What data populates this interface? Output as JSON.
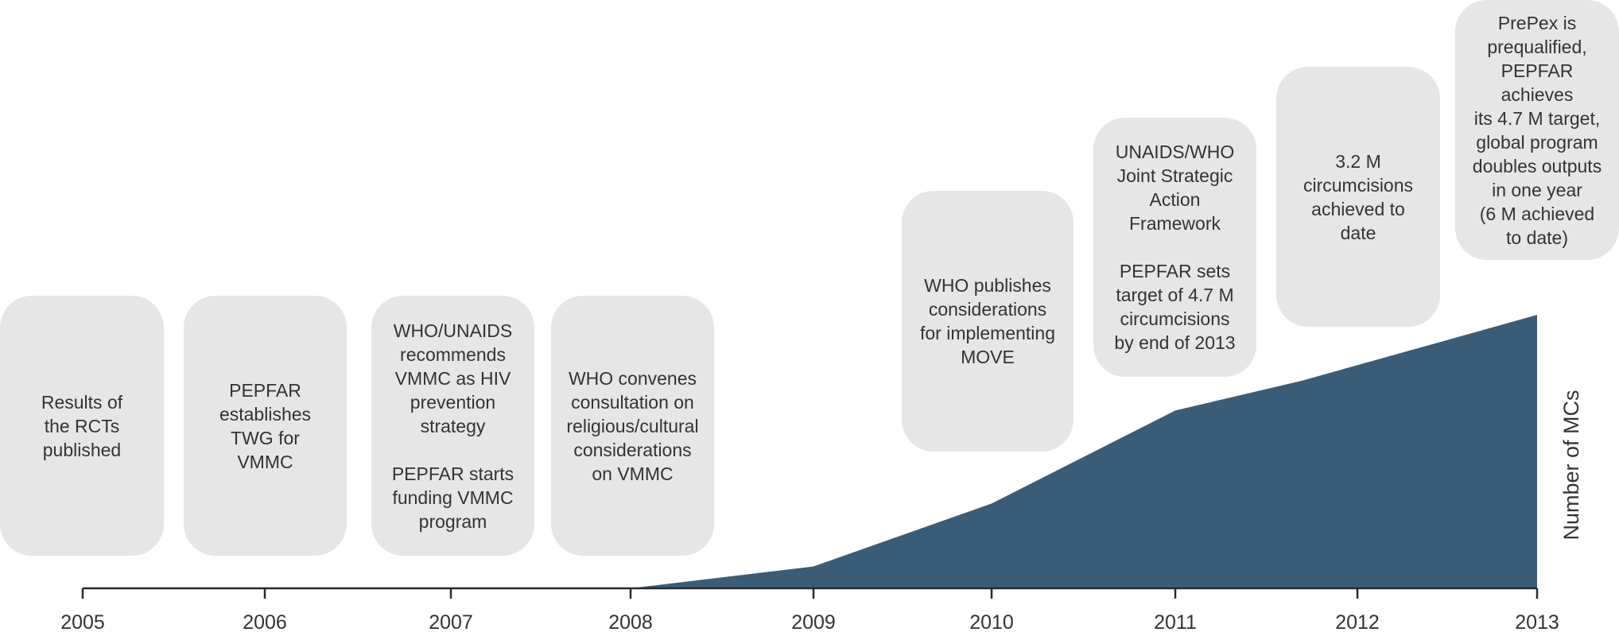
{
  "chart_data": {
    "type": "area",
    "title": "",
    "xlabel": "",
    "ylabel": "Number of MCs",
    "x_ticks": [
      "2005",
      "2006",
      "2007",
      "2008",
      "2009",
      "2010",
      "2011",
      "2012",
      "2013"
    ],
    "x": [
      2008.0,
      2009.0,
      2010.0,
      2011.0,
      2011.7,
      2013.0
    ],
    "y": [
      0,
      0.08,
      0.31,
      0.65,
      0.76,
      1.0
    ],
    "y_unit": "relative",
    "color": "#3b5c76",
    "grid": false,
    "annotations": [
      {
        "year": 2005,
        "text": "Results of\nthe RCTs\npublished"
      },
      {
        "year": 2006,
        "text": "PEPFAR\nestablishes\nTWG for\nVMMC"
      },
      {
        "year": 2007,
        "text": "WHO/UNAIDS\nrecommends\nVMMC as HIV\nprevention\nstrategy\n\nPEPFAR starts\nfunding VMMC\nprogram"
      },
      {
        "year": 2008,
        "text": "WHO convenes\nconsultation on\nreligious/cultural\nconsiderations\non VMMC"
      },
      {
        "year": 2010,
        "text": "WHO publishes\nconsiderations\nfor implementing\nMOVE"
      },
      {
        "year": 2011,
        "text": "UNAIDS/WHO\nJoint Strategic\nAction\nFramework\n\nPEPFAR sets\ntarget of 4.7 M\ncircumcisions\nby end of 2013"
      },
      {
        "year": 2012,
        "text": "3.2 M\ncircumcisions\nachieved to\ndate"
      },
      {
        "year": 2013,
        "text": "PrePex is\nprequalified,\nPEPFAR\nachieves\nits 4.7 M target,\nglobal program\ndoubles outputs\nin one year\n(6 M achieved\nto date)"
      }
    ]
  }
}
